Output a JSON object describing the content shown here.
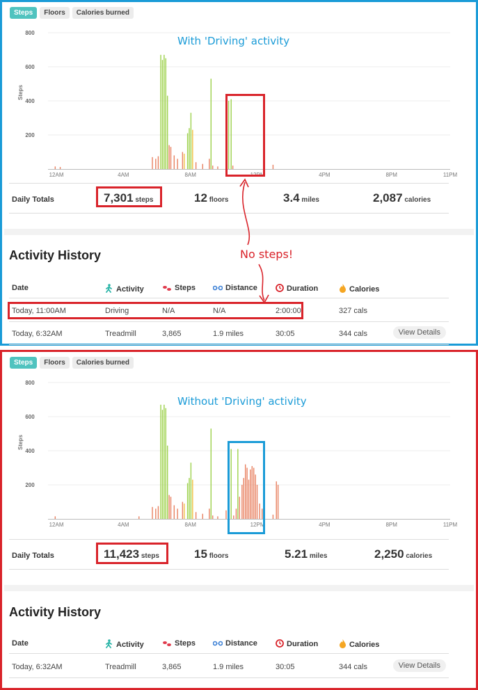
{
  "tabs": [
    "Steps",
    "Floors",
    "Calories burned"
  ],
  "top": {
    "annotation": "With 'Driving' activity",
    "chart_data": {
      "type": "bar",
      "ylabel": "Steps",
      "ylim": [
        0,
        800
      ],
      "yticks": [
        "800",
        "600",
        "400",
        "200"
      ],
      "xticks": [
        "12AM",
        "4AM",
        "8AM",
        "12PM",
        "4PM",
        "8PM",
        "11PM"
      ],
      "x_hours": [
        0.5,
        4.5,
        8.5,
        12.5,
        16.5,
        20.5,
        24
      ],
      "bars": [
        {
          "h": 0.4,
          "v": 15,
          "c": "#e88060"
        },
        {
          "h": 0.7,
          "v": 12,
          "c": "#e88060"
        },
        {
          "h": 6.2,
          "v": 70,
          "c": "#e88060"
        },
        {
          "h": 6.4,
          "v": 60,
          "c": "#e88060"
        },
        {
          "h": 6.55,
          "v": 75,
          "c": "#e88060"
        },
        {
          "h": 6.7,
          "v": 670,
          "c": "#9cd14a"
        },
        {
          "h": 6.8,
          "v": 640,
          "c": "#9cd14a"
        },
        {
          "h": 6.9,
          "v": 670,
          "c": "#9cd14a"
        },
        {
          "h": 7.0,
          "v": 650,
          "c": "#9cd14a"
        },
        {
          "h": 7.1,
          "v": 430,
          "c": "#9cd14a"
        },
        {
          "h": 7.2,
          "v": 140,
          "c": "#e88060"
        },
        {
          "h": 7.3,
          "v": 130,
          "c": "#e88060"
        },
        {
          "h": 7.5,
          "v": 80,
          "c": "#e88060"
        },
        {
          "h": 7.7,
          "v": 60,
          "c": "#e88060"
        },
        {
          "h": 8.0,
          "v": 100,
          "c": "#e88060"
        },
        {
          "h": 8.1,
          "v": 90,
          "c": "#f0c040"
        },
        {
          "h": 8.3,
          "v": 210,
          "c": "#9cd14a"
        },
        {
          "h": 8.4,
          "v": 240,
          "c": "#9cd14a"
        },
        {
          "h": 8.5,
          "v": 330,
          "c": "#9cd14a"
        },
        {
          "h": 8.6,
          "v": 230,
          "c": "#f0c040"
        },
        {
          "h": 8.8,
          "v": 40,
          "c": "#e88060"
        },
        {
          "h": 9.2,
          "v": 30,
          "c": "#e88060"
        },
        {
          "h": 9.6,
          "v": 60,
          "c": "#e88060"
        },
        {
          "h": 9.7,
          "v": 530,
          "c": "#9cd14a"
        },
        {
          "h": 9.8,
          "v": 20,
          "c": "#e88060"
        },
        {
          "h": 10.1,
          "v": 15,
          "c": "#e88060"
        },
        {
          "h": 10.6,
          "v": 50,
          "c": "#e88060"
        },
        {
          "h": 10.75,
          "v": 400,
          "c": "#9cd14a"
        },
        {
          "h": 10.9,
          "v": 410,
          "c": "#9cd14a"
        },
        {
          "h": 11.0,
          "v": 20,
          "c": "#e88060"
        },
        {
          "h": 13.4,
          "v": 25,
          "c": "#e88060"
        }
      ]
    },
    "totals": {
      "label": "Daily Totals",
      "steps": "7,301",
      "steps_unit": "steps",
      "floors": "12",
      "floors_unit": "floors",
      "miles": "3.4",
      "miles_unit": "miles",
      "calories": "2,087",
      "calories_unit": "calories"
    },
    "history": {
      "title": "Activity History",
      "headers": [
        "Date",
        "Activity",
        "Steps",
        "Distance",
        "Duration",
        "Calories"
      ],
      "rows": [
        {
          "date": "Today, 11:00AM",
          "activity": "Driving",
          "steps": "N/A",
          "distance": "N/A",
          "duration": "2:00:00",
          "calories": "327 cals",
          "details": ""
        },
        {
          "date": "Today, 6:32AM",
          "activity": "Treadmill",
          "steps": "3,865",
          "distance": "1.9 miles",
          "duration": "30:05",
          "calories": "344 cals",
          "details": "View Details"
        }
      ]
    },
    "callout": "No steps!"
  },
  "bottom": {
    "annotation": "Without 'Driving' activity",
    "chart_data": {
      "type": "bar",
      "ylabel": "Steps",
      "ylim": [
        0,
        800
      ],
      "yticks": [
        "800",
        "600",
        "400",
        "200"
      ],
      "xticks": [
        "12AM",
        "4AM",
        "8AM",
        "12PM",
        "4PM",
        "8PM",
        "11PM"
      ],
      "x_hours": [
        0.5,
        4.5,
        8.5,
        12.5,
        16.5,
        20.5,
        24
      ],
      "bars": [
        {
          "h": 0.4,
          "v": 15,
          "c": "#e88060"
        },
        {
          "h": 5.4,
          "v": 15,
          "c": "#e88060"
        },
        {
          "h": 6.2,
          "v": 70,
          "c": "#e88060"
        },
        {
          "h": 6.4,
          "v": 60,
          "c": "#e88060"
        },
        {
          "h": 6.55,
          "v": 75,
          "c": "#e88060"
        },
        {
          "h": 6.7,
          "v": 670,
          "c": "#9cd14a"
        },
        {
          "h": 6.8,
          "v": 640,
          "c": "#9cd14a"
        },
        {
          "h": 6.9,
          "v": 670,
          "c": "#9cd14a"
        },
        {
          "h": 7.0,
          "v": 650,
          "c": "#9cd14a"
        },
        {
          "h": 7.1,
          "v": 430,
          "c": "#9cd14a"
        },
        {
          "h": 7.2,
          "v": 140,
          "c": "#e88060"
        },
        {
          "h": 7.3,
          "v": 130,
          "c": "#e88060"
        },
        {
          "h": 7.5,
          "v": 80,
          "c": "#e88060"
        },
        {
          "h": 7.7,
          "v": 60,
          "c": "#e88060"
        },
        {
          "h": 8.0,
          "v": 100,
          "c": "#e88060"
        },
        {
          "h": 8.1,
          "v": 90,
          "c": "#f0c040"
        },
        {
          "h": 8.3,
          "v": 210,
          "c": "#9cd14a"
        },
        {
          "h": 8.4,
          "v": 240,
          "c": "#9cd14a"
        },
        {
          "h": 8.5,
          "v": 330,
          "c": "#9cd14a"
        },
        {
          "h": 8.6,
          "v": 230,
          "c": "#f0c040"
        },
        {
          "h": 8.8,
          "v": 40,
          "c": "#e88060"
        },
        {
          "h": 9.2,
          "v": 30,
          "c": "#e88060"
        },
        {
          "h": 9.6,
          "v": 60,
          "c": "#e88060"
        },
        {
          "h": 9.7,
          "v": 530,
          "c": "#9cd14a"
        },
        {
          "h": 9.8,
          "v": 20,
          "c": "#e88060"
        },
        {
          "h": 10.1,
          "v": 15,
          "c": "#e88060"
        },
        {
          "h": 10.6,
          "v": 50,
          "c": "#e88060"
        },
        {
          "h": 10.75,
          "v": 400,
          "c": "#9cd14a"
        },
        {
          "h": 10.9,
          "v": 410,
          "c": "#9cd14a"
        },
        {
          "h": 11.05,
          "v": 20,
          "c": "#e88060"
        },
        {
          "h": 11.2,
          "v": 60,
          "c": "#e88060"
        },
        {
          "h": 11.3,
          "v": 410,
          "c": "#9cd14a"
        },
        {
          "h": 11.4,
          "v": 130,
          "c": "#e88060"
        },
        {
          "h": 11.55,
          "v": 200,
          "c": "#e88060"
        },
        {
          "h": 11.65,
          "v": 240,
          "c": "#e88060"
        },
        {
          "h": 11.75,
          "v": 320,
          "c": "#e88060"
        },
        {
          "h": 11.85,
          "v": 300,
          "c": "#e88060"
        },
        {
          "h": 11.95,
          "v": 230,
          "c": "#e88060"
        },
        {
          "h": 12.05,
          "v": 290,
          "c": "#e88060"
        },
        {
          "h": 12.15,
          "v": 310,
          "c": "#e88060"
        },
        {
          "h": 12.25,
          "v": 300,
          "c": "#e88060"
        },
        {
          "h": 12.35,
          "v": 260,
          "c": "#e88060"
        },
        {
          "h": 12.45,
          "v": 200,
          "c": "#e88060"
        },
        {
          "h": 12.6,
          "v": 90,
          "c": "#e88060"
        },
        {
          "h": 12.75,
          "v": 60,
          "c": "#e88060"
        },
        {
          "h": 13.4,
          "v": 25,
          "c": "#e88060"
        },
        {
          "h": 13.6,
          "v": 220,
          "c": "#e88060"
        },
        {
          "h": 13.7,
          "v": 200,
          "c": "#e88060"
        }
      ]
    },
    "totals": {
      "label": "Daily Totals",
      "steps": "11,423",
      "steps_unit": "steps",
      "floors": "15",
      "floors_unit": "floors",
      "miles": "5.21",
      "miles_unit": "miles",
      "calories": "2,250",
      "calories_unit": "calories"
    },
    "history": {
      "title": "Activity History",
      "headers": [
        "Date",
        "Activity",
        "Steps",
        "Distance",
        "Duration",
        "Calories"
      ],
      "rows": [
        {
          "date": "Today, 6:32AM",
          "activity": "Treadmill",
          "steps": "3,865",
          "distance": "1.9 miles",
          "duration": "30:05",
          "calories": "344 cals",
          "details": "View Details"
        }
      ]
    }
  },
  "icons": {
    "activity": "walking-person-icon",
    "steps": "footprints-icon",
    "distance": "distance-pin-icon",
    "duration": "clock-icon",
    "calories": "flame-icon"
  },
  "colors": {
    "tab_active": "#4fc3bf",
    "bar_green": "#9cd14a",
    "bar_orange": "#e88060",
    "bar_yellow": "#f0c040",
    "annotation_blue": "#1a9bd7",
    "annotation_red": "#d9232a"
  }
}
